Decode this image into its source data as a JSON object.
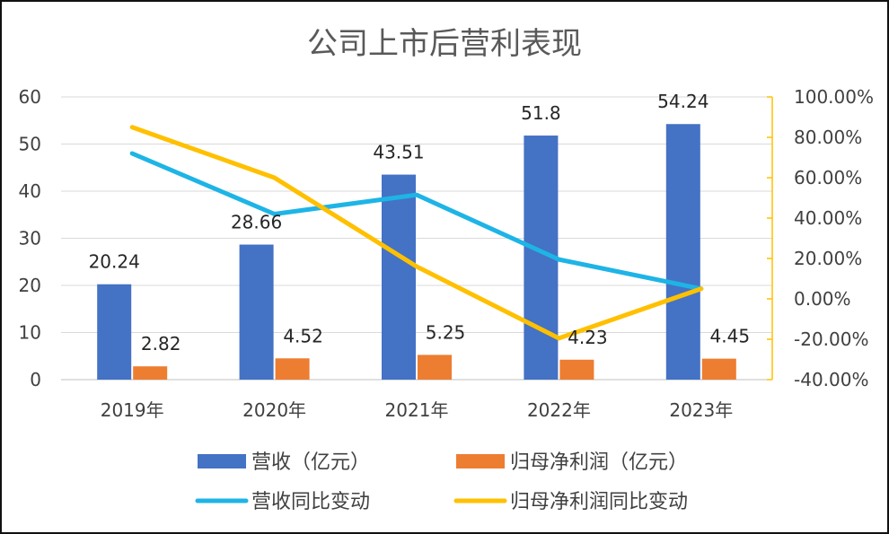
{
  "chart_data": {
    "type": "bar",
    "title": "公司上市后营利表现",
    "categories": [
      "2019年",
      "2020年",
      "2021年",
      "2022年",
      "2023年"
    ],
    "series": [
      {
        "name": "营收（亿元）",
        "kind": "bar",
        "axis": "left",
        "color": "#4472C4",
        "values": [
          20.24,
          28.66,
          43.51,
          51.8,
          54.24
        ],
        "labels": [
          "20.24",
          "28.66",
          "43.51",
          "51.8",
          "54.24"
        ]
      },
      {
        "name": "归母净利润（亿元）",
        "kind": "bar",
        "axis": "left",
        "color": "#ED7D31",
        "values": [
          2.82,
          4.52,
          5.25,
          4.23,
          4.45
        ],
        "labels": [
          "2.82",
          "4.52",
          "5.25",
          "4.23",
          "4.45"
        ]
      },
      {
        "name": "营收同比变动",
        "kind": "line",
        "axis": "right",
        "color": "#1EB4E6",
        "values": [
          72,
          42,
          51.5,
          19.5,
          5
        ]
      },
      {
        "name": "归母净利润同比变动",
        "kind": "line",
        "axis": "right",
        "color": "#FFC000",
        "values": [
          85,
          60,
          16,
          -19.5,
          5
        ]
      }
    ],
    "y_left": {
      "min": 0,
      "max": 60,
      "ticks": [
        "0",
        "10",
        "20",
        "30",
        "40",
        "50",
        "60"
      ]
    },
    "y_right": {
      "min": -40,
      "max": 100,
      "ticks": [
        "-40.00%",
        "-20.00%",
        "0.00%",
        "20.00%",
        "40.00%",
        "60.00%",
        "80.00%",
        "100.00%"
      ],
      "axis_color": "#FFC000"
    },
    "grid": true,
    "legend_position": "bottom"
  }
}
